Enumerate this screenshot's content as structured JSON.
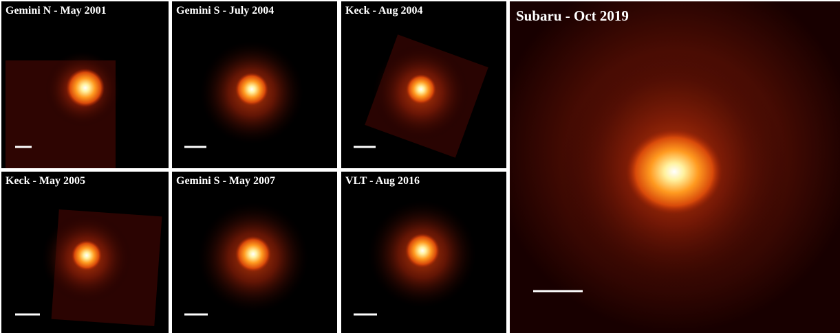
{
  "panels": [
    {
      "label": "Gemini N - May 2001"
    },
    {
      "label": "Gemini S - July 2004"
    },
    {
      "label": "Keck - Aug 2004"
    },
    {
      "label": "Keck - May 2005"
    },
    {
      "label": "Gemini S - May 2007"
    },
    {
      "label": "VLT - Aug 2016"
    },
    {
      "label": "Subaru - Oct 2019"
    }
  ]
}
